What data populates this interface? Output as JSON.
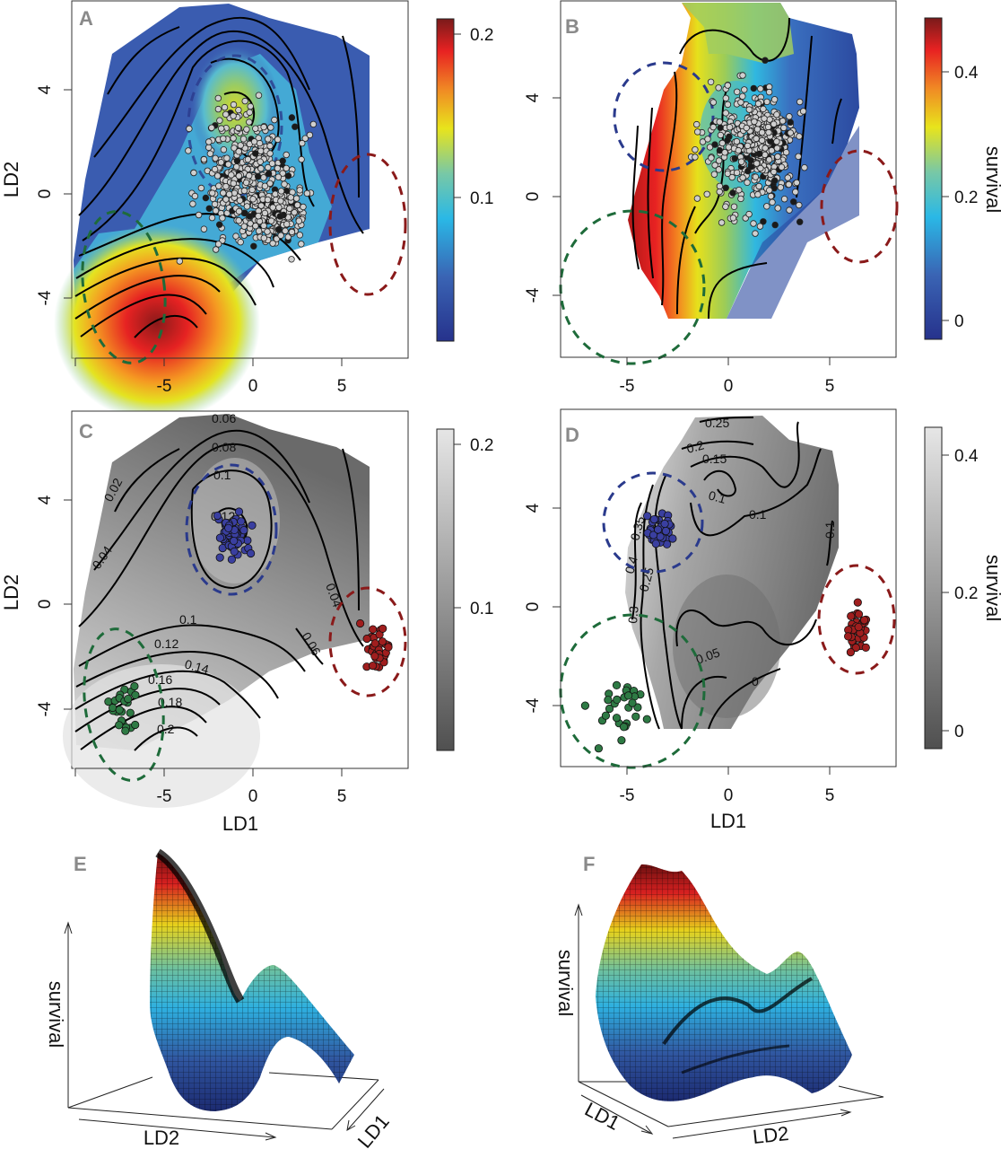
{
  "figure": {
    "panels": [
      "A",
      "B",
      "C",
      "D",
      "E",
      "F"
    ]
  },
  "chart_data": [
    {
      "panel": "A",
      "type": "heatmap",
      "title": "",
      "xlabel": "",
      "ylabel": "LD2",
      "xticks": [
        "-5",
        "0",
        "5"
      ],
      "xtick_values": [
        -5,
        0,
        5
      ],
      "yticks": [
        "-4",
        "0",
        "4"
      ],
      "ytick_values": [
        -4,
        0,
        4
      ],
      "xlim": [
        -10.2,
        8.7
      ],
      "ylim": [
        -6.9,
        7.0
      ],
      "colorbar": {
        "ticks": [
          "0.1",
          "0.2"
        ],
        "tick_values": [
          0.1,
          0.2
        ],
        "range": [
          0.005,
          0.21
        ],
        "palette": "blue-cyan-yellow-red",
        "label": ""
      },
      "overlays": [
        "grey points (individuals)",
        "black points",
        "dashed ellipses: blue (center ~(-1,2.8)), green (center ~(-6.5,-3)), red (center ~(6.5,-1.5))"
      ],
      "surface_peaks": [
        {
          "x": -4.7,
          "y": -5.2,
          "value": 0.21
        },
        {
          "x": -1,
          "y": 3,
          "value": 0.14
        }
      ]
    },
    {
      "panel": "B",
      "type": "heatmap",
      "title": "",
      "xlabel": "",
      "ylabel": "",
      "xticks": [
        "-5",
        "0",
        "5"
      ],
      "xtick_values": [
        -5,
        0,
        5
      ],
      "yticks": [
        "-4",
        "0",
        "4"
      ],
      "ytick_values": [
        -4,
        0,
        4
      ],
      "xlim": [
        -8.3,
        8.3
      ],
      "ylim": [
        -6.5,
        8.0
      ],
      "colorbar": {
        "ticks": [
          "0",
          "0.2",
          "0.4"
        ],
        "tick_values": [
          0,
          0.2,
          0.4
        ],
        "range": [
          -0.02,
          0.49
        ],
        "palette": "blue-cyan-yellow-red",
        "label": "survival"
      },
      "overlays": [
        "grey points",
        "black points",
        "dashed ellipses: blue (center ~(-3.8,3.5)), green (center ~(-5,-4.8)), red (center ~(6.5,-1))"
      ],
      "surface_peaks": [
        {
          "x": -5.2,
          "y": 0,
          "value": 0.45
        }
      ]
    },
    {
      "panel": "C",
      "type": "heatmap",
      "title": "",
      "xlabel": "LD1",
      "ylabel": "LD2",
      "xticks": [
        "-5",
        "0",
        "5"
      ],
      "xtick_values": [
        -5,
        0,
        5
      ],
      "yticks": [
        "-4",
        "0",
        "4"
      ],
      "ytick_values": [
        -4,
        0,
        4
      ],
      "xlim": [
        -10.2,
        8.7
      ],
      "ylim": [
        -6.9,
        7.0
      ],
      "colorbar": {
        "ticks": [
          "0.1",
          "0.2"
        ],
        "tick_values": [
          0.1,
          0.2
        ],
        "range": [
          0.005,
          0.21
        ],
        "palette": "greyscale",
        "label": ""
      },
      "contour_levels": [
        "0.02",
        "0.04",
        "0.06",
        "0.08",
        "0.1",
        "0.12",
        "0.14",
        "0.16",
        "0.18",
        "0.2"
      ],
      "overlays": [
        "blue points in blue dashed ellipse (~(-1,2.8))",
        "green points in green dashed ellipse (~(-6.5,-3))",
        "red points in red dashed ellipse (~(6.5,-1.8))"
      ]
    },
    {
      "panel": "D",
      "type": "heatmap",
      "title": "",
      "xlabel": "LD1",
      "ylabel": "",
      "xticks": [
        "-5",
        "0",
        "5"
      ],
      "xtick_values": [
        -5,
        0,
        5
      ],
      "yticks": [
        "-4",
        "0",
        "4"
      ],
      "ytick_values": [
        -4,
        0,
        4
      ],
      "xlim": [
        -8.3,
        8.3
      ],
      "ylim": [
        -6.5,
        8.0
      ],
      "colorbar": {
        "ticks": [
          "0",
          "0.2",
          "0.4"
        ],
        "tick_values": [
          0,
          0.2,
          0.4
        ],
        "range": [
          -0.03,
          0.44
        ],
        "palette": "greyscale",
        "label": "survival"
      },
      "contour_levels": [
        "0",
        "0.05",
        "0.1",
        "0.15",
        "0.2",
        "0.25",
        "0.3",
        "0.35",
        "0.4"
      ],
      "overlays": [
        "blue points in blue dashed ellipse (~(-4,3.5))",
        "green points in green dashed ellipse (~(-5,-4.8))",
        "red points in red dashed ellipse (~(6.5,-1))"
      ]
    },
    {
      "panel": "E",
      "type": "surface3d",
      "axes": {
        "z": "survival",
        "x": "LD2",
        "y": "LD1"
      },
      "palette": "blue-cyan-yellow-red"
    },
    {
      "panel": "F",
      "type": "surface3d",
      "axes": {
        "z": "survival",
        "x": "LD1",
        "y": "LD2"
      },
      "palette": "blue-cyan-yellow-red"
    }
  ],
  "labels": {
    "A": "A",
    "B": "B",
    "C": "C",
    "D": "D",
    "E": "E",
    "F": "F",
    "ld1": "LD1",
    "ld2": "LD2",
    "survival": "survival",
    "xt": [
      "-5",
      "0",
      "5"
    ],
    "yt": [
      "-4",
      "0",
      "4"
    ],
    "cbA": [
      "0.1",
      "0.2"
    ],
    "cbB": [
      "0",
      "0.2",
      "0.4"
    ],
    "cC": [
      "0.02",
      "0.04",
      "0.06",
      "0.08",
      "0.1",
      "0.12",
      "0.1",
      "0.12",
      "0.14",
      "0.16",
      "0.18",
      "0.2",
      "0.04",
      "0.06"
    ],
    "cD": [
      "0.25",
      "0.2",
      "0.15",
      "0.1",
      "0.1",
      "0.05",
      "0",
      "0.4",
      "0.35",
      "0.25",
      "0.3",
      "0.1"
    ]
  }
}
